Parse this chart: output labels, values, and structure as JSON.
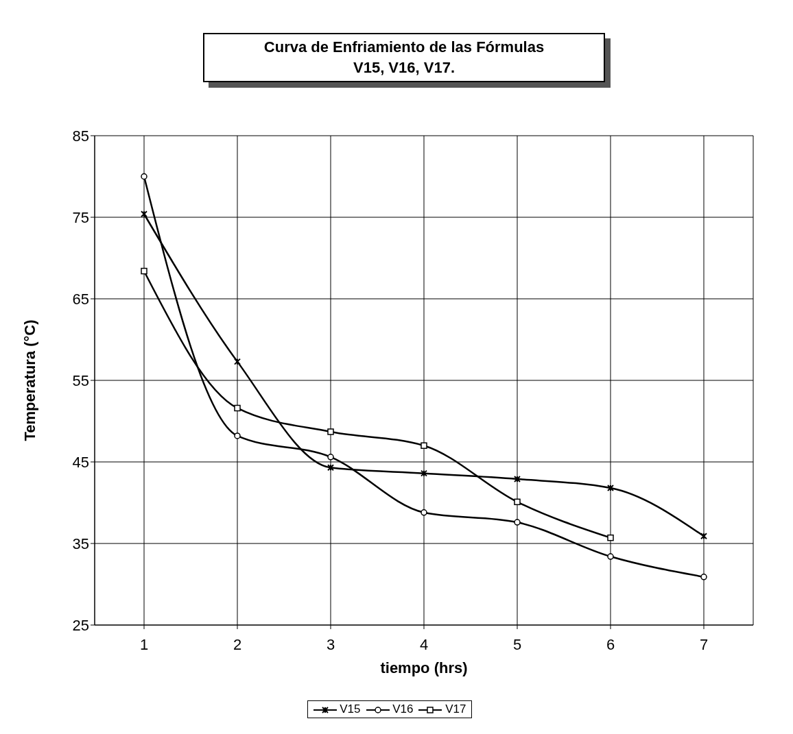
{
  "chart_data": {
    "type": "line",
    "title": "Curva de Enfriamiento de las Fórmulas\nV15,  V16,  V17.",
    "xlabel": "tiempo (hrs)",
    "ylabel": "Temperatura (°C)",
    "categories": [
      "1",
      "2",
      "3",
      "4",
      "5",
      "6",
      "7"
    ],
    "series": [
      {
        "name": "V15",
        "color": "#000000",
        "marker": "cross",
        "values": [
          75.4,
          57.3,
          44.3,
          43.6,
          42.9,
          41.8,
          35.9
        ]
      },
      {
        "name": "V16",
        "color": "#000000",
        "marker": "circle",
        "values": [
          80,
          48.2,
          45.6,
          38.8,
          37.6,
          33.4,
          30.9
        ]
      },
      {
        "name": "V17",
        "color": "#000000",
        "marker": "square",
        "values": [
          68.4,
          51.6,
          48.7,
          47.0,
          40.1,
          35.7,
          null
        ]
      }
    ],
    "ylim": [
      25,
      85
    ],
    "yticks": [
      25,
      35,
      45,
      55,
      65,
      75,
      85
    ],
    "grid": true,
    "legend": "bottom",
    "line_style": "solid"
  }
}
